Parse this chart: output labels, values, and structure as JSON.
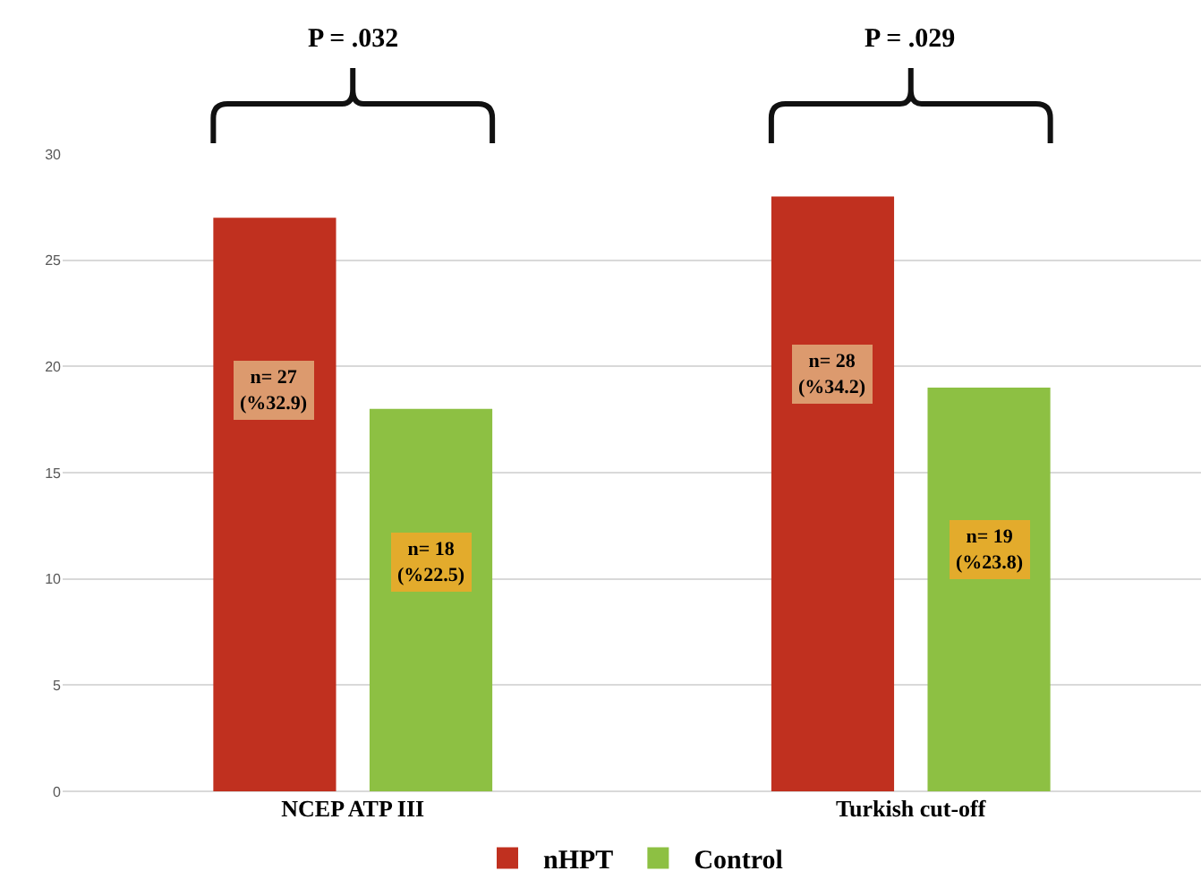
{
  "chart_data": {
    "type": "bar",
    "categories": [
      "NCEP ATP III",
      "Turkish cut-off"
    ],
    "series": [
      {
        "name": "nHPT",
        "color": "#c0301f",
        "values": [
          27,
          28
        ],
        "value_labels": [
          "n= 27\n(%32.9)",
          "n= 28\n(%34.2)"
        ]
      },
      {
        "name": "Control",
        "color": "#8dc043",
        "values": [
          18,
          19
        ],
        "value_labels": [
          "n= 18\n(%22.5)",
          "n= 19\n(%23.8)"
        ]
      }
    ],
    "ylim": [
      0,
      30
    ],
    "yticks": [
      0,
      5,
      10,
      15,
      20,
      25,
      30
    ],
    "grid": "y",
    "legend": "bottom",
    "annotations": [
      "P = .032",
      "P = .029"
    ]
  }
}
